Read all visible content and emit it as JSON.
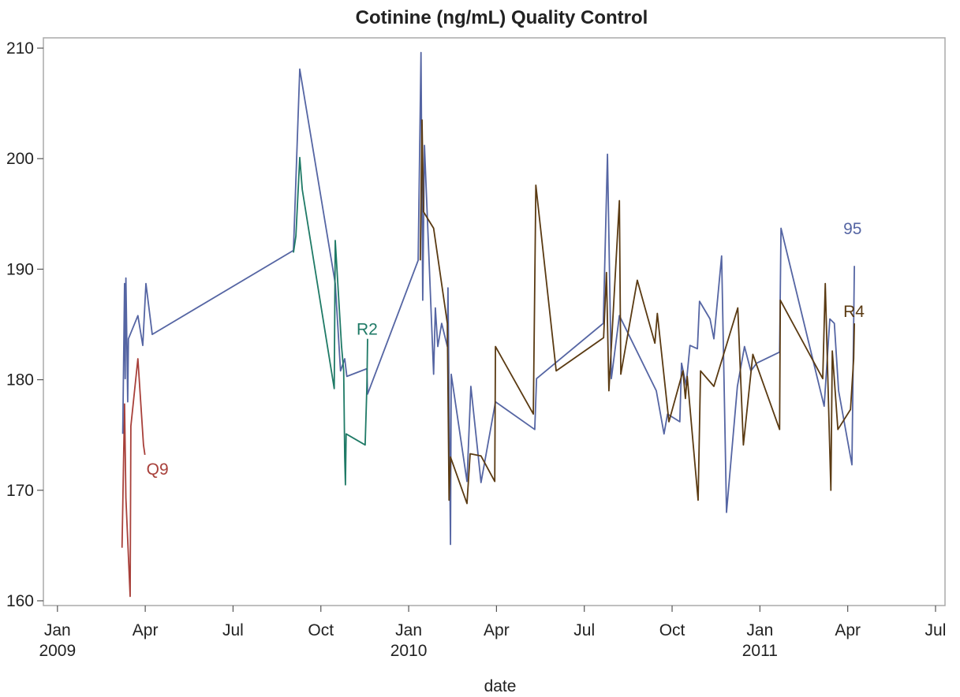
{
  "chart_data": {
    "type": "line",
    "title": "Cotinine (ng/mL) Quality Control",
    "x_label": "date",
    "xlim": [
      2008.96,
      2011.527
    ],
    "ylim": [
      159.57,
      210.93
    ],
    "xticks": [
      {
        "value": 2009.0,
        "label": "Jan\n2009"
      },
      {
        "value": 2009.25,
        "label": "Apr"
      },
      {
        "value": 2009.5,
        "label": "Jul"
      },
      {
        "value": 2009.75,
        "label": "Oct"
      },
      {
        "value": 2010.0,
        "label": "Jan\n2010"
      },
      {
        "value": 2010.25,
        "label": "Apr"
      },
      {
        "value": 2010.5,
        "label": "Jul"
      },
      {
        "value": 2010.75,
        "label": "Oct"
      },
      {
        "value": 2011.0,
        "label": "Jan\n2011"
      },
      {
        "value": 2011.25,
        "label": "Apr"
      },
      {
        "value": 2011.5,
        "label": "Jul"
      }
    ],
    "yticks": [
      160,
      170,
      180,
      190,
      200,
      210
    ],
    "series": [
      {
        "name": "Q9",
        "color": "#a8403a",
        "x": [
          2009.184,
          2009.191,
          2009.195,
          2009.207,
          2009.209,
          2009.229,
          2009.245,
          2009.249
        ],
        "values": [
          164.8,
          177.8,
          169.3,
          160.4,
          175.8,
          181.9,
          174.1,
          173.2
        ]
      },
      {
        "name": "95",
        "color": "#5565a3",
        "x": [
          2009.186,
          2009.191,
          2009.193,
          2009.195,
          2009.2,
          2009.202,
          2009.229,
          2009.243,
          2009.252,
          2009.27,
          2009.672,
          2009.69,
          2009.791,
          2009.806,
          2009.818,
          2009.824,
          2009.881,
          2009.883,
          2010.027,
          2010.035,
          2010.04,
          2010.045,
          2010.071,
          2010.076,
          2010.083,
          2010.094,
          2010.11,
          2010.112,
          2010.119,
          2010.121,
          2010.166,
          2010.177,
          2010.206,
          2010.247,
          2010.359,
          2010.364,
          2010.554,
          2010.566,
          2010.577,
          2010.6,
          2010.705,
          2010.727,
          2010.737,
          2010.772,
          2010.777,
          2010.79,
          2010.801,
          2010.822,
          2010.828,
          2010.858,
          2010.869,
          2010.891,
          2010.898,
          2010.905,
          2010.936,
          2010.956,
          2010.974,
          2010.991,
          2011.056,
          2011.06,
          2011.183,
          2011.199,
          2011.212,
          2011.224,
          2011.262,
          2011.269
        ],
        "values": [
          175.1,
          188.7,
          180.1,
          189.2,
          178.0,
          183.7,
          185.8,
          183.1,
          188.7,
          184.1,
          191.7,
          208.1,
          188.7,
          180.8,
          181.9,
          180.3,
          181.0,
          178.7,
          190.8,
          209.6,
          187.2,
          201.2,
          180.5,
          186.5,
          183.0,
          185.1,
          183.0,
          188.3,
          165.1,
          180.5,
          170.8,
          179.4,
          170.7,
          178.0,
          175.5,
          180.1,
          185.1,
          200.4,
          180.1,
          185.8,
          179.0,
          175.1,
          176.9,
          176.2,
          181.5,
          179.5,
          183.1,
          182.8,
          187.1,
          185.5,
          183.7,
          191.2,
          179.8,
          168.0,
          179.4,
          183.0,
          180.8,
          181.5,
          182.5,
          193.7,
          177.6,
          185.5,
          185.1,
          179.0,
          172.3,
          190.3
        ]
      },
      {
        "name": "R2",
        "color": "#1f7a66",
        "x": [
          2009.672,
          2009.679,
          2009.69,
          2009.697,
          2009.788,
          2009.791,
          2009.809,
          2009.815,
          2009.818,
          2009.82,
          2009.822,
          2009.876,
          2009.881,
          2009.883
        ],
        "values": [
          191.5,
          193.0,
          200.1,
          197.2,
          179.2,
          192.6,
          183.0,
          180.8,
          173.0,
          170.5,
          175.1,
          174.1,
          179.4,
          183.7
        ]
      },
      {
        "name": "R4",
        "color": "#5a3a12",
        "x": [
          2010.033,
          2010.038,
          2010.042,
          2010.071,
          2010.11,
          2010.115,
          2010.119,
          2010.166,
          2010.175,
          2010.206,
          2010.245,
          2010.247,
          2010.355,
          2010.362,
          2010.42,
          2010.555,
          2010.563,
          2010.57,
          2010.6,
          2010.604,
          2010.651,
          2010.701,
          2010.708,
          2010.741,
          2010.781,
          2010.788,
          2010.793,
          2010.824,
          2010.831,
          2010.869,
          2010.937,
          2010.953,
          2010.98,
          2011.056,
          2011.058,
          2011.179,
          2011.186,
          2011.202,
          2011.206,
          2011.222,
          2011.258,
          2011.267,
          2011.269
        ],
        "values": [
          190.8,
          203.5,
          195.2,
          193.7,
          185.1,
          169.1,
          173.0,
          168.8,
          173.3,
          173.1,
          170.8,
          183.0,
          176.9,
          197.6,
          180.8,
          183.8,
          189.7,
          179.0,
          196.2,
          180.5,
          189.0,
          183.3,
          186.0,
          176.2,
          180.8,
          178.3,
          180.3,
          169.1,
          180.8,
          179.4,
          186.5,
          174.1,
          182.3,
          175.5,
          187.2,
          180.1,
          188.7,
          170.0,
          182.6,
          175.5,
          177.3,
          181.9,
          185.1
        ]
      }
    ]
  }
}
